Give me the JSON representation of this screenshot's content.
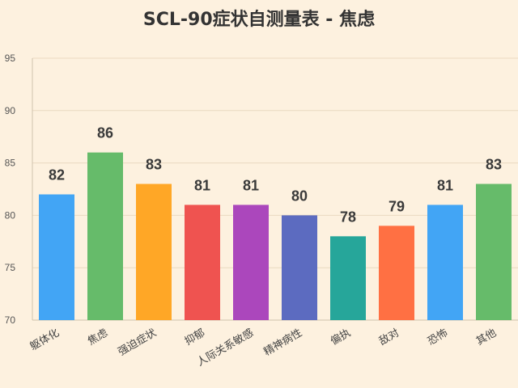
{
  "chart_data": {
    "type": "bar",
    "title": "SCL-90症状自测量表 - 焦虑",
    "xlabel": "",
    "ylabel": "",
    "categories": [
      "躯体化",
      "焦虑",
      "强迫症状",
      "抑郁",
      "人际关系敏感",
      "精神病性",
      "偏执",
      "敌对",
      "恐怖",
      "其他"
    ],
    "values": [
      82,
      86,
      83,
      81,
      81,
      80,
      78,
      79,
      81,
      83
    ],
    "ylim": [
      70,
      95
    ],
    "yticks": [
      70,
      75,
      80,
      85,
      90,
      95
    ],
    "grid": true,
    "legend": "none",
    "colors": [
      "#42a5f5",
      "#66bb6a",
      "#ffa726",
      "#ef5350",
      "#ab47bc",
      "#5c6bc0",
      "#26a69a",
      "#ff7043",
      "#42a5f5",
      "#66bb6a"
    ],
    "background": "#fdf1df"
  }
}
